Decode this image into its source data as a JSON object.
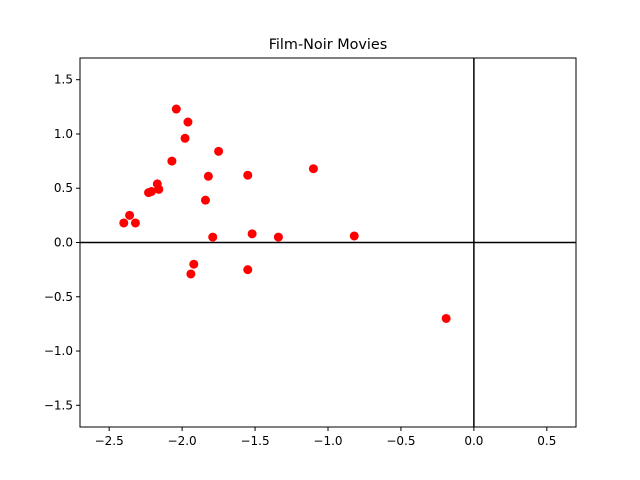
{
  "chart_data": {
    "type": "scatter",
    "title": "Film-Noir Movies",
    "xlabel": "",
    "ylabel": "",
    "xlim": [
      -2.7,
      0.7
    ],
    "ylim": [
      -1.7,
      1.7
    ],
    "xticks": [
      -2.5,
      -2.0,
      -1.5,
      -1.0,
      -0.5,
      0.0,
      0.5
    ],
    "xtick_labels": [
      "−2.5",
      "−2.0",
      "−1.5",
      "−1.0",
      "−0.5",
      "0.0",
      "0.5"
    ],
    "yticks": [
      -1.5,
      -1.0,
      -0.5,
      0.0,
      0.5,
      1.0,
      1.5
    ],
    "ytick_labels": [
      "−1.5",
      "−1.0",
      "−0.5",
      "0.0",
      "0.5",
      "1.0",
      "1.5"
    ],
    "grid": false,
    "reference_lines": {
      "x": 0.0,
      "y": 0.0,
      "color": "#000000"
    },
    "marker_color": "#ff0000",
    "points": [
      {
        "x": -2.4,
        "y": 0.18
      },
      {
        "x": -2.36,
        "y": 0.25
      },
      {
        "x": -2.32,
        "y": 0.18
      },
      {
        "x": -2.23,
        "y": 0.46
      },
      {
        "x": -2.21,
        "y": 0.47
      },
      {
        "x": -2.17,
        "y": 0.54
      },
      {
        "x": -2.16,
        "y": 0.49
      },
      {
        "x": -2.07,
        "y": 0.75
      },
      {
        "x": -2.04,
        "y": 1.23
      },
      {
        "x": -1.98,
        "y": 0.96
      },
      {
        "x": -1.96,
        "y": 1.11
      },
      {
        "x": -1.94,
        "y": -0.29
      },
      {
        "x": -1.92,
        "y": -0.2
      },
      {
        "x": -1.84,
        "y": 0.39
      },
      {
        "x": -1.82,
        "y": 0.61
      },
      {
        "x": -1.79,
        "y": 0.05
      },
      {
        "x": -1.75,
        "y": 0.84
      },
      {
        "x": -1.55,
        "y": 0.62
      },
      {
        "x": -1.55,
        "y": -0.25
      },
      {
        "x": -1.52,
        "y": 0.08
      },
      {
        "x": -1.34,
        "y": 0.05
      },
      {
        "x": -1.1,
        "y": 0.68
      },
      {
        "x": -0.82,
        "y": 0.06
      },
      {
        "x": -0.19,
        "y": -0.7
      }
    ]
  }
}
